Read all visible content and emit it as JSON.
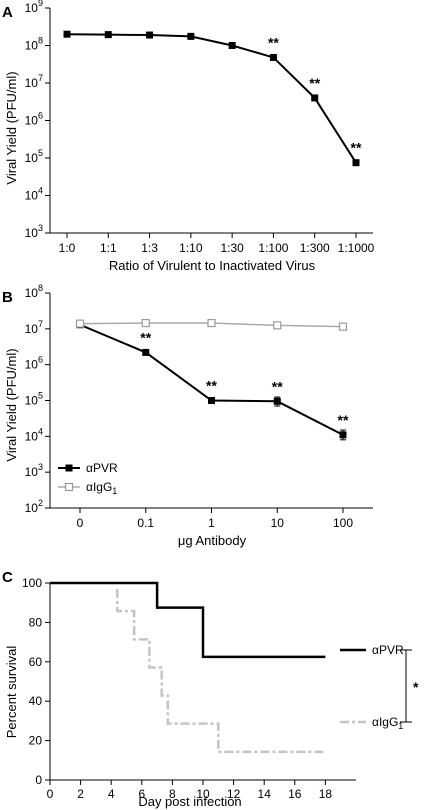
{
  "chart_data": [
    {
      "panel": "A",
      "type": "line",
      "yscale": "log",
      "ylim_exp": [
        3,
        9
      ],
      "y_tick_base": "10",
      "y_tick_exponents": [
        "3",
        "4",
        "5",
        "6",
        "7",
        "8",
        "9"
      ],
      "categories": [
        "1:0",
        "1:1",
        "1:3",
        "1:10",
        "1:30",
        "1:100",
        "1:300",
        "1:1000"
      ],
      "ylabel": "Viral Yield (PFU/ml)",
      "xlabel": "Ratio of Virulent to Inactivated Virus",
      "series": [
        {
          "values": [
            200000000,
            195000000,
            190000000,
            175000000,
            100000000,
            48000000,
            4000000,
            75000
          ],
          "color": "#000000",
          "marker": "filled-square"
        }
      ],
      "annotations": [
        {
          "index": 5,
          "text": "**"
        },
        {
          "index": 6,
          "text": "**"
        },
        {
          "index": 7,
          "text": "**"
        }
      ]
    },
    {
      "panel": "B",
      "type": "line",
      "yscale": "log",
      "ylim_exp": [
        2,
        8
      ],
      "y_tick_base": "10",
      "y_tick_exponents": [
        "2",
        "3",
        "4",
        "5",
        "6",
        "7",
        "8"
      ],
      "categories": [
        "0",
        "0.1",
        "1",
        "10",
        "100"
      ],
      "ylabel": "Viral Yield (PFU/ml)",
      "xlabel": "μg Antibody",
      "legend_placement": "lower-left",
      "series": [
        {
          "name": "αPVR",
          "values": [
            13000000,
            2200000,
            100000,
            95000,
            11000
          ],
          "error_high": [
            null,
            null,
            115000,
            125000,
            15000
          ],
          "error_low": [
            null,
            null,
            90000,
            70000,
            8000
          ],
          "color": "#000000",
          "marker": "filled-square"
        },
        {
          "name_main": "αIgG",
          "name_sub": "1",
          "values": [
            14000000,
            14500000,
            14500000,
            12500000,
            11500000
          ],
          "color": "#aaaaaa",
          "marker": "open-square"
        }
      ],
      "annotations": [
        {
          "index": 1,
          "text": "**"
        },
        {
          "index": 2,
          "text": "**"
        },
        {
          "index": 3,
          "text": "**"
        },
        {
          "index": 4,
          "text": "**"
        }
      ]
    },
    {
      "panel": "C",
      "type": "line",
      "subtype": "kaplan-meier",
      "xlim": [
        0,
        20
      ],
      "ylim": [
        0,
        100
      ],
      "x_ticks": [
        "0",
        "2",
        "4",
        "6",
        "8",
        "10",
        "12",
        "14",
        "16",
        "18"
      ],
      "y_ticks": [
        "0",
        "20",
        "40",
        "60",
        "80",
        "100"
      ],
      "ylabel": "Percent survival",
      "xlabel": "Day post infection",
      "series": [
        {
          "name": "αPVR",
          "color": "#000000",
          "style": "solid",
          "steps": [
            [
              0,
              100
            ],
            [
              7,
              100
            ],
            [
              7,
              87.5
            ],
            [
              10,
              87.5
            ],
            [
              10,
              62.5
            ],
            [
              18,
              62.5
            ]
          ]
        },
        {
          "name_main": "αIgG",
          "name_sub": "1",
          "color": "#c4c4c4",
          "style": "dash-dot",
          "steps": [
            [
              4.4,
              97
            ],
            [
              4.4,
              85.7
            ],
            [
              5.5,
              85.7
            ],
            [
              5.5,
              71.4
            ],
            [
              6.5,
              71.4
            ],
            [
              6.5,
              57.1
            ],
            [
              7.3,
              57.1
            ],
            [
              7.3,
              42.9
            ],
            [
              7.7,
              42.9
            ],
            [
              7.7,
              28.6
            ],
            [
              10,
              28.6
            ],
            [
              11,
              28.6
            ],
            [
              11,
              14.3
            ],
            [
              18,
              14.3
            ]
          ]
        }
      ],
      "significance": "*"
    }
  ]
}
